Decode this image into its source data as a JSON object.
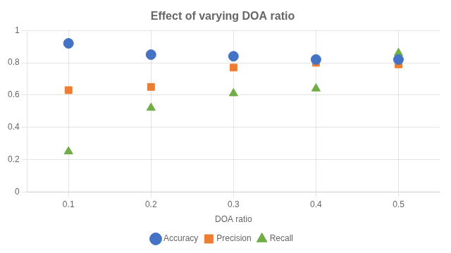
{
  "chart_data": {
    "type": "scatter",
    "title": "Effect of varying DOA ratio",
    "xlabel": "DOA ratio",
    "x": [
      0.1,
      0.2,
      0.3,
      0.4,
      0.5
    ],
    "series": [
      {
        "name": "Accuracy",
        "color": "#4472C4",
        "marker": "circle",
        "values": [
          0.92,
          0.85,
          0.84,
          0.82,
          0.82
        ]
      },
      {
        "name": "Precision",
        "color": "#ED7D31",
        "marker": "square",
        "values": [
          0.63,
          0.65,
          0.77,
          0.8,
          0.79
        ]
      },
      {
        "name": "Recall",
        "color": "#70AD47",
        "marker": "triangle",
        "values": [
          0.25,
          0.52,
          0.61,
          0.64,
          0.86
        ]
      }
    ],
    "xlim": [
      0.05,
      0.55
    ],
    "xticks": [
      0.1,
      0.2,
      0.3,
      0.4,
      0.5
    ],
    "ylim": [
      0,
      1.0
    ],
    "yticks": [
      0,
      0.2,
      0.4,
      0.6,
      0.8,
      1
    ],
    "grid": true,
    "legend": "bottom"
  }
}
